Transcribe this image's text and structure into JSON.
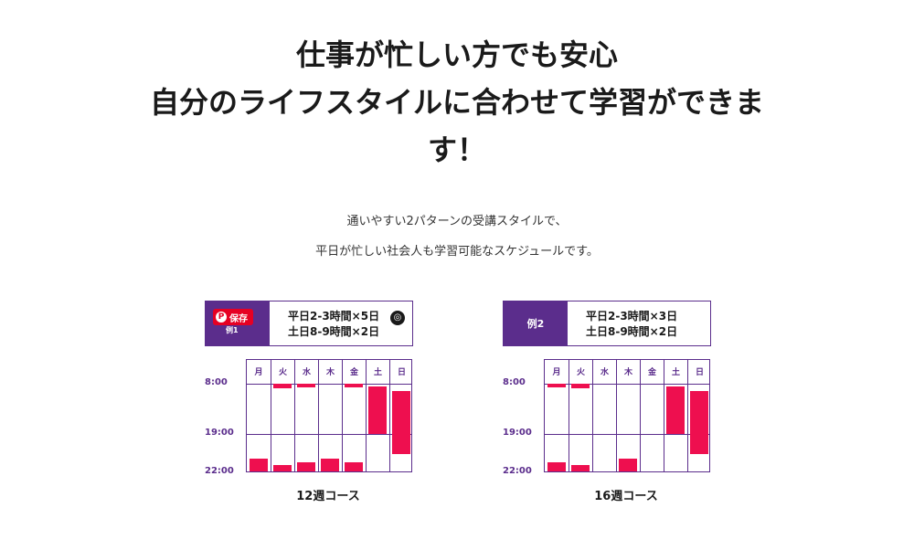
{
  "headline": {
    "line1": "仕事が忙しい方でも安心",
    "line2": "自分のライフスタイルに合わせて学習ができま",
    "line3": "す！"
  },
  "subtext": {
    "line1": "通いやすい2パターンの受講スタイルで、",
    "line2": "平日が忙しい社会人も学習可能なスケジュールです。"
  },
  "colors": {
    "purple": "#5b2d8c",
    "bar": "#ee0f4f",
    "pinterest": "#e60023"
  },
  "overlay": {
    "save_label": "保存",
    "pin_icon": "pinterest-icon",
    "lens_icon": "lens-icon"
  },
  "days": [
    "月",
    "火",
    "水",
    "木",
    "金",
    "土",
    "日"
  ],
  "time_labels": [
    "8:00",
    "19:00",
    "22:00"
  ],
  "chart_data": [
    {
      "type": "schedule",
      "tag": "例1",
      "frequency": [
        "平日2-3時間×5日",
        "土日8-9時間×2日"
      ],
      "course": "12週コース",
      "blocks": [
        {
          "day": "月",
          "start": 21.0,
          "end": 22.0
        },
        {
          "day": "火",
          "start": 8.0,
          "end": 9.0
        },
        {
          "day": "火",
          "start": 21.5,
          "end": 22.0
        },
        {
          "day": "水",
          "start": 8.0,
          "end": 8.5
        },
        {
          "day": "水",
          "start": 21.3,
          "end": 22.0
        },
        {
          "day": "木",
          "start": 21.0,
          "end": 22.0
        },
        {
          "day": "金",
          "start": 8.0,
          "end": 8.6
        },
        {
          "day": "金",
          "start": 21.3,
          "end": 22.0
        },
        {
          "day": "土",
          "start": 8.5,
          "end": 19.0
        },
        {
          "day": "日",
          "start": 9.6,
          "end": 20.6
        }
      ]
    },
    {
      "type": "schedule",
      "tag": "例2",
      "frequency": [
        "平日2-3時間×3日",
        "土日8-9時間×2日"
      ],
      "course": "16週コース",
      "blocks": [
        {
          "day": "月",
          "start": 8.0,
          "end": 8.6
        },
        {
          "day": "月",
          "start": 21.3,
          "end": 22.0
        },
        {
          "day": "火",
          "start": 8.0,
          "end": 9.0
        },
        {
          "day": "火",
          "start": 21.5,
          "end": 22.0
        },
        {
          "day": "木",
          "start": 21.0,
          "end": 22.0
        },
        {
          "day": "土",
          "start": 8.5,
          "end": 19.0
        },
        {
          "day": "日",
          "start": 9.6,
          "end": 20.6
        }
      ]
    }
  ]
}
